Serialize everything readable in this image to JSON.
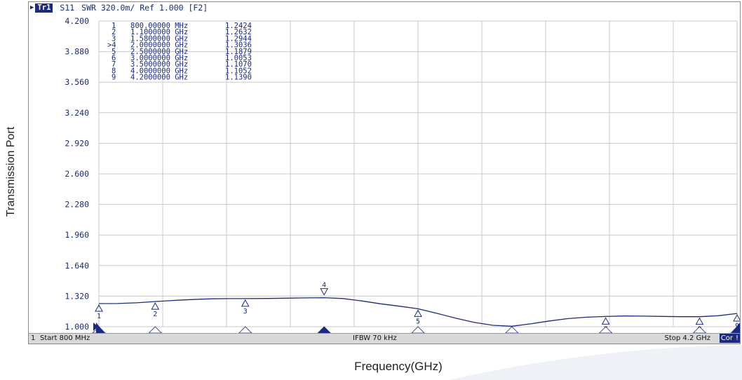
{
  "header": {
    "trace_badge": "Tr1",
    "parameter": "S11",
    "format_text": "SWR 320.0m/ Ref 1.000 [F2]"
  },
  "axis_titles": {
    "y": "Transmission Port",
    "x": "Frequency(GHz)"
  },
  "status_bar": {
    "channel": "1",
    "start": "Start 800 MHz",
    "ifbw": "IFBW 70 kHz",
    "stop": "Stop 4.2 GHz",
    "cor": "Cor",
    "flag": "!"
  },
  "marker_table": [
    {
      "id": "1",
      "freq": "800.00000 MHz",
      "value": "1.2424"
    },
    {
      "id": "2",
      "freq": "1.1000000 GHz",
      "value": "1.2632"
    },
    {
      "id": "3",
      "freq": "1.5800000 GHz",
      "value": "1.2944"
    },
    {
      "id": ">4",
      "freq": "2.0000000 GHz",
      "value": "1.3036"
    },
    {
      "id": "5",
      "freq": "2.5000000 GHz",
      "value": "1.1879"
    },
    {
      "id": "6",
      "freq": "3.0000000 GHz",
      "value": "1.0053"
    },
    {
      "id": "7",
      "freq": "3.5000000 GHz",
      "value": "1.1070"
    },
    {
      "id": "8",
      "freq": "4.0000000 GHz",
      "value": "1.1052"
    },
    {
      "id": "9",
      "freq": "4.2000000 GHz",
      "value": "1.1390"
    }
  ],
  "colors": {
    "trace": "#1f2a7a",
    "grid": "#c9c9c9",
    "text": "#1b2a80",
    "marker_fill": "#1b2a80",
    "background_swoosh": "#eef1f6"
  },
  "chart_data": {
    "type": "line",
    "xlabel": "Frequency(GHz)",
    "ylabel": "Transmission Port",
    "xlim": [
      0.8,
      4.2
    ],
    "ylim": [
      1.0,
      4.2
    ],
    "yticks": [
      "4.200",
      "3.880",
      "3.560",
      "3.240",
      "2.920",
      "2.600",
      "2.280",
      "1.960",
      "1.640",
      "1.320",
      "1.000"
    ],
    "grid": true,
    "series": [
      {
        "name": "S11",
        "x": [
          0.8,
          0.9,
          1.0,
          1.1,
          1.2,
          1.3,
          1.4,
          1.5,
          1.58,
          1.7,
          1.8,
          1.9,
          2.0,
          2.1,
          2.2,
          2.3,
          2.4,
          2.5,
          2.6,
          2.7,
          2.8,
          2.9,
          3.0,
          3.1,
          3.2,
          3.3,
          3.4,
          3.5,
          3.6,
          3.7,
          3.8,
          3.9,
          4.0,
          4.1,
          4.2
        ],
        "y": [
          1.2424,
          1.243,
          1.25,
          1.2632,
          1.275,
          1.285,
          1.292,
          1.294,
          1.2944,
          1.296,
          1.299,
          1.302,
          1.3036,
          1.295,
          1.27,
          1.24,
          1.215,
          1.1879,
          1.14,
          1.09,
          1.045,
          1.015,
          1.0053,
          1.03,
          1.06,
          1.085,
          1.1,
          1.107,
          1.112,
          1.111,
          1.108,
          1.105,
          1.1052,
          1.115,
          1.139
        ]
      }
    ],
    "markers": [
      {
        "id": "1",
        "x": 0.8,
        "y": 1.2424
      },
      {
        "id": "2",
        "x": 1.1,
        "y": 1.2632
      },
      {
        "id": "3",
        "x": 1.58,
        "y": 1.2944
      },
      {
        "id": "4",
        "x": 2.0,
        "y": 1.3036,
        "active": true
      },
      {
        "id": "5",
        "x": 2.5,
        "y": 1.1879
      },
      {
        "id": "6",
        "x": 3.0,
        "y": 1.0053
      },
      {
        "id": "7",
        "x": 3.5,
        "y": 1.107
      },
      {
        "id": "8",
        "x": 4.0,
        "y": 1.1052
      },
      {
        "id": "9",
        "x": 4.2,
        "y": 1.139
      }
    ]
  }
}
